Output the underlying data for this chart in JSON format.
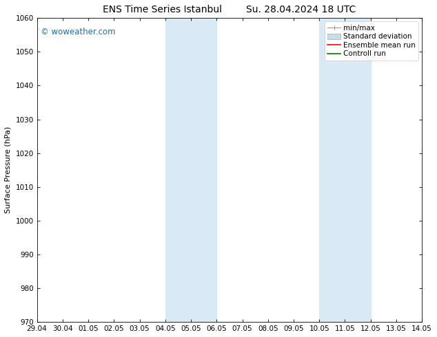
{
  "title": "ENS Time Series Istanbul        Su. 28.04.2024 18 UTC",
  "ylabel": "Surface Pressure (hPa)",
  "ylim": [
    970,
    1060
  ],
  "yticks": [
    970,
    980,
    990,
    1000,
    1010,
    1020,
    1030,
    1040,
    1050,
    1060
  ],
  "xtick_labels": [
    "29.04",
    "30.04",
    "01.05",
    "02.05",
    "03.05",
    "04.05",
    "05.05",
    "06.05",
    "07.05",
    "08.05",
    "09.05",
    "10.05",
    "11.05",
    "12.05",
    "13.05",
    "14.05"
  ],
  "x_values": [
    0,
    1,
    2,
    3,
    4,
    5,
    6,
    7,
    8,
    9,
    10,
    11,
    12,
    13,
    14,
    15
  ],
  "shaded_regions": [
    {
      "xmin": 5,
      "xmax": 7,
      "color": "#daeaf5"
    },
    {
      "xmin": 11,
      "xmax": 13,
      "color": "#daeaf5"
    }
  ],
  "watermark_text": "© woweather.com",
  "watermark_color": "#1a6fb5",
  "background_color": "#ffffff",
  "legend_entries": [
    {
      "label": "min/max",
      "color": "#999999",
      "style": "minmax"
    },
    {
      "label": "Standard deviation",
      "color": "#c8dcea",
      "style": "bar"
    },
    {
      "label": "Ensemble mean run",
      "color": "red",
      "style": "line",
      "lw": 1.2
    },
    {
      "label": "Controll run",
      "color": "green",
      "style": "line",
      "lw": 1.2
    }
  ],
  "title_fontsize": 10,
  "ylabel_fontsize": 8,
  "tick_fontsize": 7.5,
  "legend_fontsize": 7.5
}
